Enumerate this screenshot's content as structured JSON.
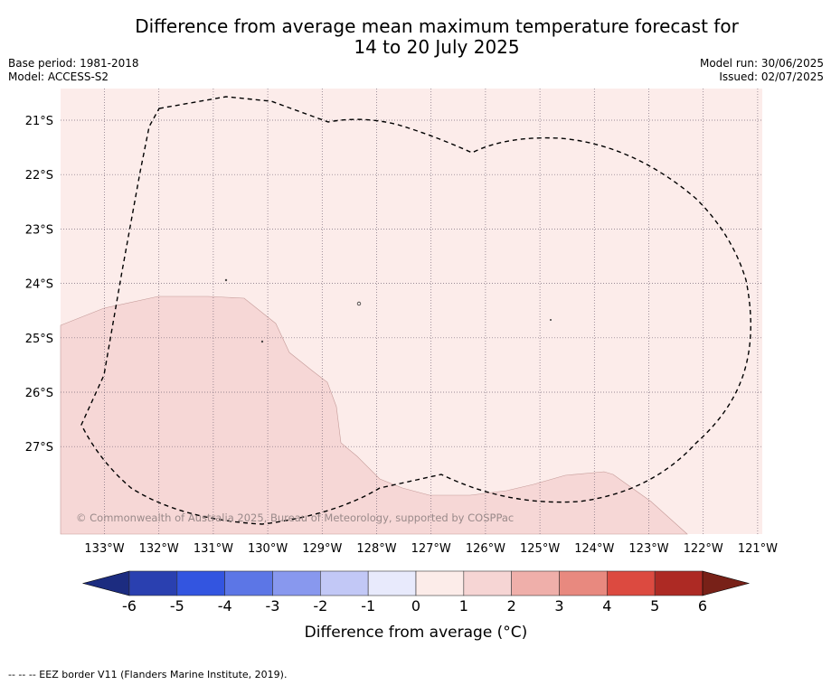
{
  "title_line1": "Difference from average mean maximum temperature forecast for",
  "title_line2": "14 to 20 July 2025",
  "base_period": "Base period: 1981-2018",
  "model": "Model: ACCESS-S2",
  "model_run": "Model run: 30/06/2025",
  "issued": "Issued: 02/07/2025",
  "copyright": "© Commonwealth of Australia 2025, Bureau of Meteorology, supported by COSPPac",
  "lat_labels": [
    "21°S",
    "22°S",
    "23°S",
    "24°S",
    "25°S",
    "26°S",
    "27°S"
  ],
  "lon_labels": [
    "133°W",
    "132°W",
    "131°W",
    "130°W",
    "129°W",
    "128°W",
    "127°W",
    "126°W",
    "125°W",
    "124°W",
    "123°W",
    "122°W",
    "121°W"
  ],
  "legend": {
    "label": "Difference from average (°C)",
    "ticks": [
      "-6",
      "-5",
      "-4",
      "-3",
      "-2",
      "-1",
      "0",
      "1",
      "2",
      "3",
      "4",
      "5",
      "6"
    ],
    "colors": [
      "#1c2c80",
      "#2a40b0",
      "#3355e0",
      "#5c76e6",
      "#8898ee",
      "#c2c8f6",
      "#e8eafc",
      "#fcece9",
      "#f6d5d4",
      "#efafaa",
      "#e8897f",
      "#dc4a40",
      "#ad2a24",
      "#782118"
    ]
  },
  "regions": {
    "zero_to_one_color": "#fcecea",
    "one_to_two_color": "#f6d7d6"
  },
  "footnote": "-- -- -- EEZ border V11 (Flanders Marine Institute, 2019)."
}
